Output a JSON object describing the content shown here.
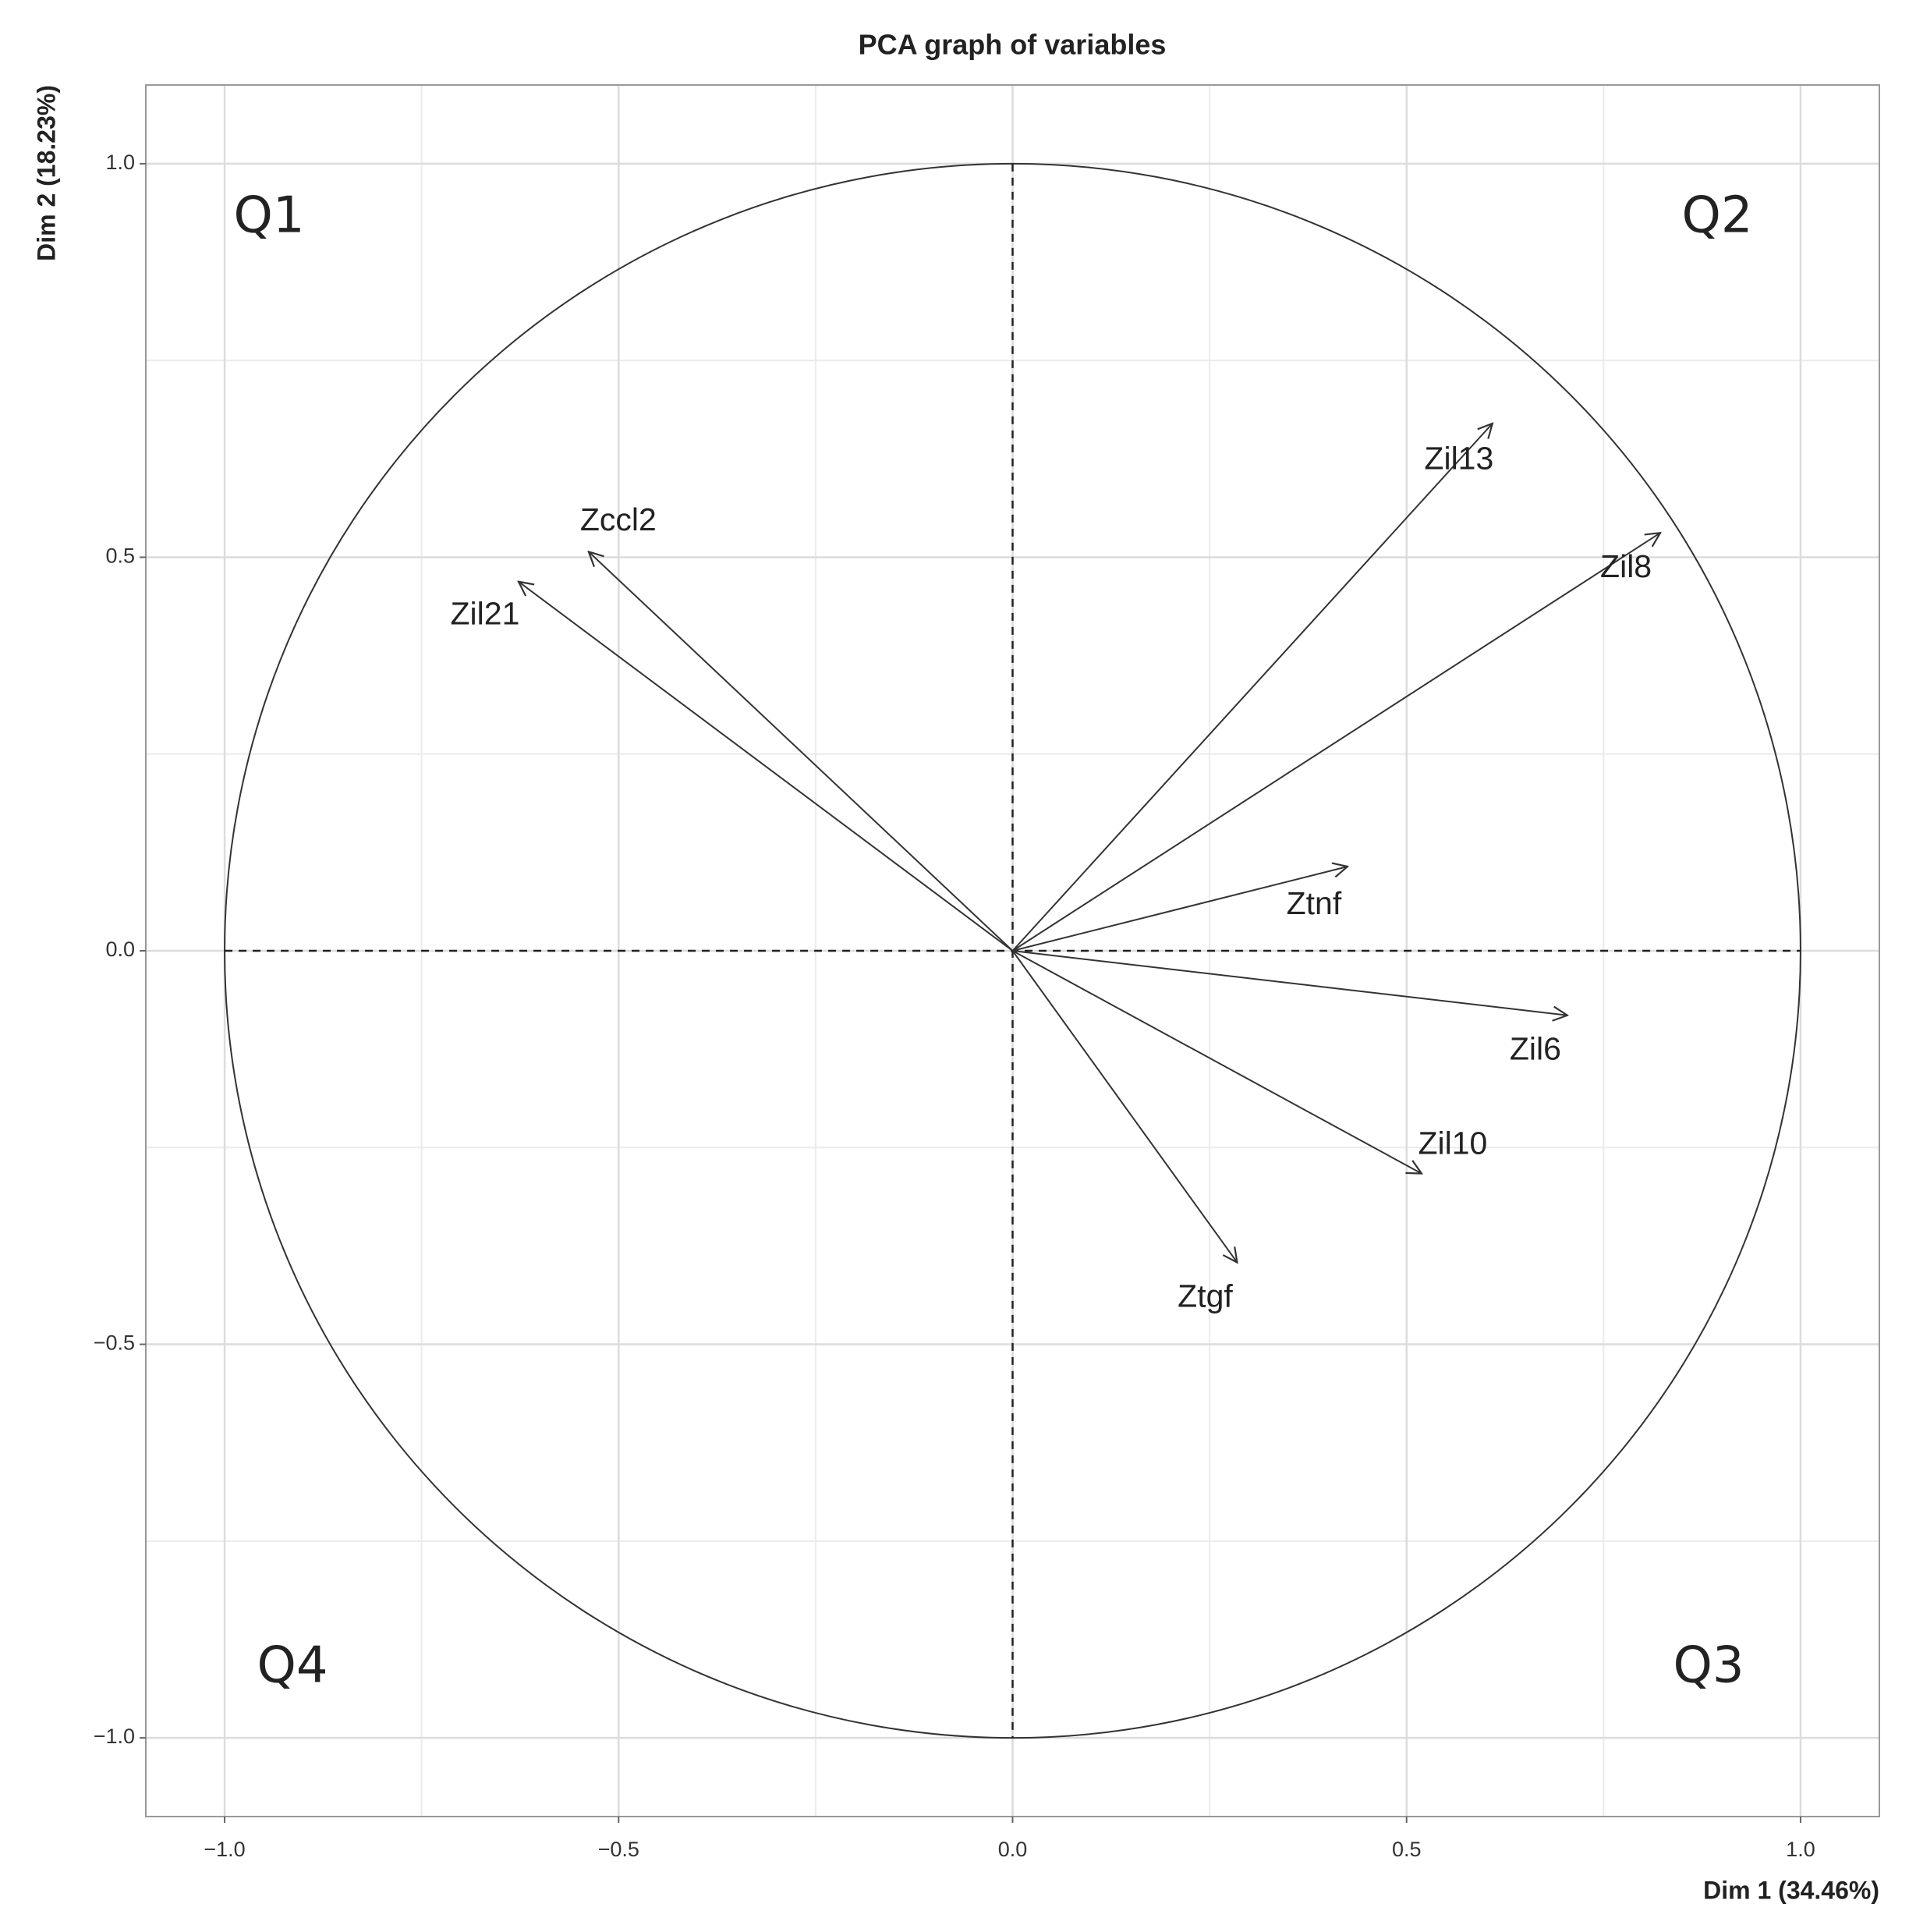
{
  "chart_data": {
    "type": "arrow",
    "title": "PCA graph of variables",
    "x_label": "Dim 1 (34.46%)",
    "y_label": "Dim 2 (18.23%)",
    "labels": [
      "Zil13",
      "Zil8",
      "Ztnf",
      "Zil6",
      "Zil10",
      "Ztgf",
      "Zccl2",
      "Zil21"
    ],
    "x": [
      0.609,
      0.822,
      0.425,
      0.704,
      0.519,
      0.285,
      -0.538,
      -0.627
    ],
    "y": [
      0.67,
      0.531,
      0.107,
      -0.082,
      -0.283,
      -0.396,
      0.507,
      0.469
    ],
    "color": "#333333",
    "xlim": [
      -1.1,
      1.1
    ],
    "ylim": [
      -1.1,
      1.1
    ],
    "xticks": [
      {
        "value": -1,
        "label": "−1.0"
      },
      {
        "value": -0.5,
        "label": "−0.5"
      },
      {
        "value": 0,
        "label": "0.0"
      },
      {
        "value": 0.5,
        "label": "0.5"
      },
      {
        "value": 1,
        "label": "1.0"
      }
    ],
    "yticks": [
      {
        "value": -1,
        "label": "−1.0"
      },
      {
        "value": -0.5,
        "label": "−0.5"
      },
      {
        "value": 0,
        "label": "0.0"
      },
      {
        "value": 0.5,
        "label": "0.5"
      },
      {
        "value": 1,
        "label": "1.0"
      }
    ],
    "grid": true,
    "annotations": [
      "Q1",
      "Q2",
      "Q3",
      "Q4"
    ]
  }
}
